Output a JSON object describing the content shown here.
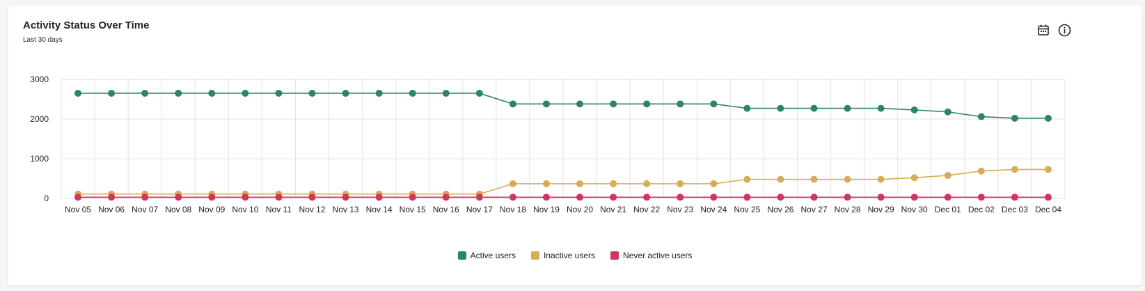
{
  "card": {
    "title": "Activity Status Over Time",
    "subtitle": "Last 30 days",
    "icons": [
      "calendar-icon",
      "info-icon"
    ]
  },
  "colors": {
    "active": "#2e8565",
    "inactive": "#d7ac56",
    "never": "#d4345a",
    "grid": "#e3e3e3"
  },
  "chart_data": {
    "type": "line",
    "title": "Activity Status Over Time",
    "subtitle": "Last 30 days",
    "xlabel": "",
    "ylabel": "",
    "ylim": [
      0,
      3000
    ],
    "yticks": [
      0,
      1000,
      2000,
      3000
    ],
    "grid": true,
    "legend_position": "bottom-center",
    "categories": [
      "Nov 05",
      "Nov 06",
      "Nov 07",
      "Nov 08",
      "Nov 09",
      "Nov 10",
      "Nov 11",
      "Nov 12",
      "Nov 13",
      "Nov 14",
      "Nov 15",
      "Nov 16",
      "Nov 17",
      "Nov 18",
      "Nov 19",
      "Nov 20",
      "Nov 21",
      "Nov 22",
      "Nov 23",
      "Nov 24",
      "Nov 25",
      "Nov 26",
      "Nov 27",
      "Nov 28",
      "Nov 29",
      "Nov 30",
      "Dec 01",
      "Dec 02",
      "Dec 03",
      "Dec 04"
    ],
    "series": [
      {
        "name": "Active users",
        "color": "#2e8565",
        "values": [
          2650,
          2650,
          2650,
          2650,
          2650,
          2650,
          2650,
          2650,
          2650,
          2650,
          2650,
          2650,
          2650,
          2380,
          2380,
          2380,
          2380,
          2380,
          2380,
          2380,
          2270,
          2270,
          2270,
          2270,
          2270,
          2230,
          2180,
          2060,
          2020,
          2020
        ]
      },
      {
        "name": "Inactive users",
        "color": "#d7ac56",
        "values": [
          110,
          110,
          110,
          110,
          110,
          110,
          110,
          110,
          110,
          110,
          110,
          110,
          110,
          370,
          370,
          370,
          370,
          370,
          370,
          370,
          480,
          480,
          480,
          480,
          480,
          520,
          580,
          690,
          730,
          730
        ]
      },
      {
        "name": "Never active users",
        "color": "#d4345a",
        "values": [
          30,
          30,
          30,
          30,
          30,
          30,
          30,
          30,
          30,
          30,
          30,
          30,
          30,
          30,
          30,
          30,
          30,
          30,
          30,
          30,
          30,
          30,
          30,
          30,
          30,
          30,
          30,
          30,
          30,
          30
        ]
      }
    ]
  }
}
